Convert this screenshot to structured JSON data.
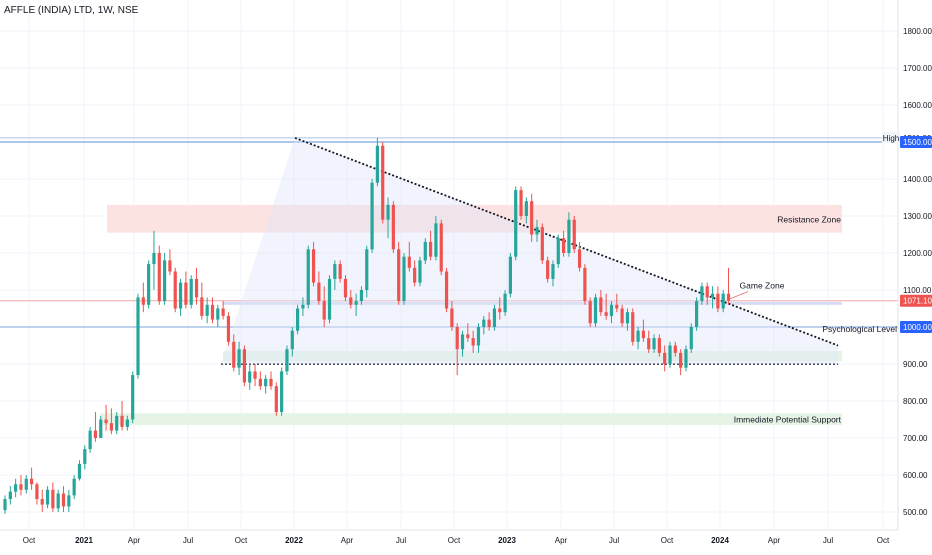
{
  "header": {
    "title": "AFFLE (INDIA) LTD, 1W, NSE"
  },
  "chart_data": {
    "type": "candlestick",
    "timeframe": "1W",
    "x_ticks": [
      "Oct",
      "2021",
      "Apr",
      "Jul",
      "Oct",
      "2022",
      "Apr",
      "Jul",
      "Oct",
      "2023",
      "Apr",
      "Jul",
      "Oct",
      "2024",
      "Apr",
      "Jul",
      "Oct"
    ],
    "y_ticks": [
      "500.00",
      "600.00",
      "700.00",
      "800.00",
      "900.00",
      "1000.00",
      "1100.00",
      "1200.00",
      "1300.00",
      "1400.00",
      "1500.00",
      "1600.00",
      "1700.00",
      "1800.00"
    ],
    "ylim": [
      465,
      1860
    ],
    "colors": {
      "up": "#26a69a",
      "down": "#ef5350",
      "grid": "#f0f3fa",
      "trend": "#131722"
    },
    "price_labels": [
      {
        "text": "High",
        "value": 1511,
        "kind": "tag"
      },
      {
        "text": "1511.00",
        "value": 1511,
        "kind": "plain"
      },
      {
        "text": "1500.00",
        "value": 1500,
        "kind": "blue"
      },
      {
        "text": "1071.10",
        "value": 1071.1,
        "kind": "red"
      },
      {
        "text": "1000.00",
        "value": 1000,
        "kind": "blue"
      }
    ],
    "horizontal_lines": [
      {
        "value": 1511,
        "color": "#b2c4e8"
      },
      {
        "value": 1500,
        "color": "#5b8fd6"
      },
      {
        "value": 1071.1,
        "color": "#f4a9a7"
      },
      {
        "value": 1000,
        "color": "#7ea4dd"
      },
      {
        "value": 900,
        "color": "#131722",
        "dotted": true,
        "from": 221
      }
    ],
    "zones": [
      {
        "name": "Resistance Zone",
        "label": "Resistance Zone",
        "from_x": 107,
        "top": 1330,
        "bottom": 1255,
        "color": "#fde2e2"
      },
      {
        "name": "Game Zone",
        "label": "Game Zone",
        "from_x": 223,
        "top": 1068,
        "bottom": 1060,
        "color": "#d6dcf5"
      },
      {
        "name": "Psychological Level",
        "label": "Psychological Level",
        "from_x": 223,
        "top": 935,
        "bottom": 907,
        "color": "#e6f4e6"
      },
      {
        "name": "Immediate Potential Support",
        "label": "Immediate Potential Support",
        "from_x": 100,
        "top": 767,
        "bottom": 735,
        "color": "#e6f4e6"
      }
    ],
    "candles": [
      [
        505,
        545,
        495,
        535
      ],
      [
        535,
        570,
        520,
        555
      ],
      [
        555,
        590,
        540,
        575
      ],
      [
        575,
        600,
        545,
        560
      ],
      [
        560,
        600,
        550,
        590
      ],
      [
        590,
        620,
        560,
        575
      ],
      [
        575,
        580,
        520,
        535
      ],
      [
        535,
        560,
        500,
        520
      ],
      [
        520,
        570,
        510,
        560
      ],
      [
        560,
        580,
        500,
        510
      ],
      [
        510,
        560,
        500,
        550
      ],
      [
        550,
        570,
        500,
        515
      ],
      [
        515,
        560,
        500,
        545
      ],
      [
        545,
        600,
        535,
        590
      ],
      [
        590,
        640,
        585,
        630
      ],
      [
        630,
        680,
        615,
        670
      ],
      [
        670,
        730,
        660,
        720
      ],
      [
        720,
        770,
        690,
        700
      ],
      [
        700,
        760,
        700,
        750
      ],
      [
        750,
        790,
        720,
        740
      ],
      [
        740,
        780,
        710,
        720
      ],
      [
        720,
        770,
        710,
        760
      ],
      [
        760,
        800,
        720,
        730
      ],
      [
        730,
        760,
        720,
        750
      ],
      [
        750,
        880,
        740,
        870
      ],
      [
        870,
        1090,
        860,
        1080
      ],
      [
        1080,
        1120,
        1040,
        1060
      ],
      [
        1060,
        1180,
        1050,
        1170
      ],
      [
        1170,
        1260,
        1100,
        1200
      ],
      [
        1200,
        1220,
        1060,
        1070
      ],
      [
        1070,
        1200,
        1060,
        1180
      ],
      [
        1180,
        1210,
        1140,
        1150
      ],
      [
        1150,
        1160,
        1040,
        1050
      ],
      [
        1050,
        1130,
        1030,
        1120
      ],
      [
        1120,
        1150,
        1050,
        1060
      ],
      [
        1060,
        1140,
        1050,
        1130
      ],
      [
        1130,
        1160,
        1060,
        1080
      ],
      [
        1080,
        1120,
        1020,
        1030
      ],
      [
        1030,
        1080,
        1010,
        1060
      ],
      [
        1060,
        1080,
        1010,
        1020
      ],
      [
        1020,
        1060,
        1000,
        1050
      ],
      [
        1050,
        1070,
        1020,
        1030
      ],
      [
        1030,
        1040,
        950,
        960
      ],
      [
        960,
        980,
        880,
        890
      ],
      [
        890,
        960,
        870,
        940
      ],
      [
        940,
        950,
        840,
        850
      ],
      [
        850,
        900,
        830,
        880
      ],
      [
        880,
        900,
        840,
        860
      ],
      [
        860,
        880,
        830,
        840
      ],
      [
        840,
        870,
        820,
        860
      ],
      [
        860,
        880,
        830,
        840
      ],
      [
        840,
        850,
        760,
        770
      ],
      [
        770,
        890,
        760,
        880
      ],
      [
        880,
        950,
        870,
        940
      ],
      [
        940,
        1000,
        920,
        990
      ],
      [
        990,
        1060,
        980,
        1050
      ],
      [
        1050,
        1080,
        1030,
        1060
      ],
      [
        1060,
        1220,
        1050,
        1210
      ],
      [
        1210,
        1230,
        1110,
        1120
      ],
      [
        1120,
        1150,
        1060,
        1070
      ],
      [
        1070,
        1110,
        1000,
        1020
      ],
      [
        1020,
        1140,
        1010,
        1130
      ],
      [
        1130,
        1180,
        1100,
        1170
      ],
      [
        1170,
        1180,
        1120,
        1130
      ],
      [
        1130,
        1140,
        1070,
        1080
      ],
      [
        1080,
        1100,
        1050,
        1060
      ],
      [
        1060,
        1090,
        1030,
        1070
      ],
      [
        1070,
        1110,
        1060,
        1100
      ],
      [
        1100,
        1220,
        1080,
        1210
      ],
      [
        1210,
        1400,
        1200,
        1390
      ],
      [
        1390,
        1511,
        1380,
        1490
      ],
      [
        1490,
        1500,
        1280,
        1290
      ],
      [
        1290,
        1350,
        1240,
        1330
      ],
      [
        1330,
        1340,
        1200,
        1210
      ],
      [
        1210,
        1230,
        1060,
        1070
      ],
      [
        1070,
        1200,
        1060,
        1190
      ],
      [
        1190,
        1230,
        1150,
        1160
      ],
      [
        1160,
        1180,
        1110,
        1120
      ],
      [
        1120,
        1190,
        1110,
        1180
      ],
      [
        1180,
        1240,
        1170,
        1230
      ],
      [
        1230,
        1260,
        1180,
        1190
      ],
      [
        1190,
        1300,
        1180,
        1280
      ],
      [
        1280,
        1290,
        1140,
        1150
      ],
      [
        1150,
        1160,
        1040,
        1050
      ],
      [
        1050,
        1070,
        990,
        1000
      ],
      [
        1000,
        1010,
        870,
        940
      ],
      [
        940,
        990,
        920,
        980
      ],
      [
        980,
        1010,
        960,
        970
      ],
      [
        970,
        990,
        930,
        950
      ],
      [
        950,
        1010,
        930,
        1000
      ],
      [
        1000,
        1030,
        980,
        1020
      ],
      [
        1020,
        1040,
        990,
        1000
      ],
      [
        1000,
        1060,
        990,
        1050
      ],
      [
        1050,
        1080,
        1020,
        1040
      ],
      [
        1040,
        1100,
        1030,
        1090
      ],
      [
        1090,
        1200,
        1080,
        1190
      ],
      [
        1190,
        1380,
        1180,
        1370
      ],
      [
        1370,
        1380,
        1290,
        1300
      ],
      [
        1300,
        1350,
        1280,
        1340
      ],
      [
        1340,
        1360,
        1230,
        1250
      ],
      [
        1250,
        1290,
        1230,
        1270
      ],
      [
        1270,
        1280,
        1170,
        1180
      ],
      [
        1180,
        1190,
        1120,
        1130
      ],
      [
        1130,
        1180,
        1110,
        1170
      ],
      [
        1170,
        1250,
        1160,
        1240
      ],
      [
        1240,
        1260,
        1190,
        1200
      ],
      [
        1200,
        1310,
        1190,
        1290
      ],
      [
        1290,
        1300,
        1200,
        1210
      ],
      [
        1210,
        1230,
        1150,
        1160
      ],
      [
        1160,
        1170,
        1060,
        1070
      ],
      [
        1070,
        1080,
        1000,
        1010
      ],
      [
        1010,
        1090,
        1000,
        1080
      ],
      [
        1080,
        1100,
        1030,
        1040
      ],
      [
        1040,
        1090,
        1020,
        1030
      ],
      [
        1030,
        1070,
        1010,
        1060
      ],
      [
        1060,
        1090,
        1040,
        1050
      ],
      [
        1050,
        1060,
        1000,
        1010
      ],
      [
        1010,
        1050,
        990,
        1040
      ],
      [
        1040,
        1050,
        950,
        960
      ],
      [
        960,
        1000,
        940,
        990
      ],
      [
        990,
        1020,
        960,
        970
      ],
      [
        970,
        990,
        930,
        940
      ],
      [
        940,
        980,
        930,
        970
      ],
      [
        970,
        980,
        920,
        930
      ],
      [
        930,
        950,
        880,
        900
      ],
      [
        900,
        960,
        890,
        950
      ],
      [
        950,
        960,
        920,
        930
      ],
      [
        930,
        940,
        870,
        890
      ],
      [
        890,
        950,
        880,
        940
      ],
      [
        940,
        1010,
        930,
        1000
      ],
      [
        1000,
        1080,
        990,
        1070
      ],
      [
        1070,
        1120,
        1060,
        1110
      ],
      [
        1110,
        1120,
        1060,
        1080
      ],
      [
        1080,
        1110,
        1050,
        1090
      ],
      [
        1090,
        1110,
        1040,
        1050
      ],
      [
        1050,
        1100,
        1040,
        1090
      ],
      [
        1090,
        1160,
        1060,
        1071.1
      ]
    ],
    "annotations": [
      {
        "text": "Game Zone",
        "value": 1112,
        "from_x": 712,
        "to_x": 748
      }
    ]
  }
}
